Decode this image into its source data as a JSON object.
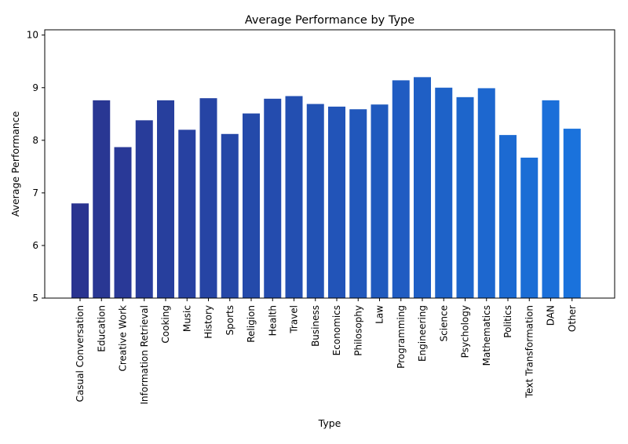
{
  "chart_data": {
    "type": "bar",
    "title": "Average Performance by Type",
    "xlabel": "Type",
    "ylabel": "Average Performance",
    "ylim": [
      5,
      10.1
    ],
    "yticks": [
      5,
      6,
      7,
      8,
      9,
      10
    ],
    "grid": false,
    "categories": [
      "Casual Conversation",
      "Education",
      "Creative Work",
      "Information Retrieval",
      "Cooking",
      "Music",
      "History",
      "Sports",
      "Religion",
      "Health",
      "Travel",
      "Business",
      "Economics",
      "Philosophy",
      "Law",
      "Programming",
      "Engineering",
      "Science",
      "Psychology",
      "Mathematics",
      "Politics",
      "Text Transformation",
      "DAN",
      "Other"
    ],
    "values": [
      6.8,
      8.76,
      7.87,
      8.38,
      8.76,
      8.2,
      8.8,
      8.12,
      8.51,
      8.79,
      8.84,
      8.69,
      8.64,
      8.59,
      8.68,
      9.14,
      9.2,
      9.0,
      8.82,
      8.99,
      8.1,
      7.67,
      8.76,
      8.22
    ],
    "color_start": "#2a3490",
    "color_end": "#1a72dc"
  }
}
